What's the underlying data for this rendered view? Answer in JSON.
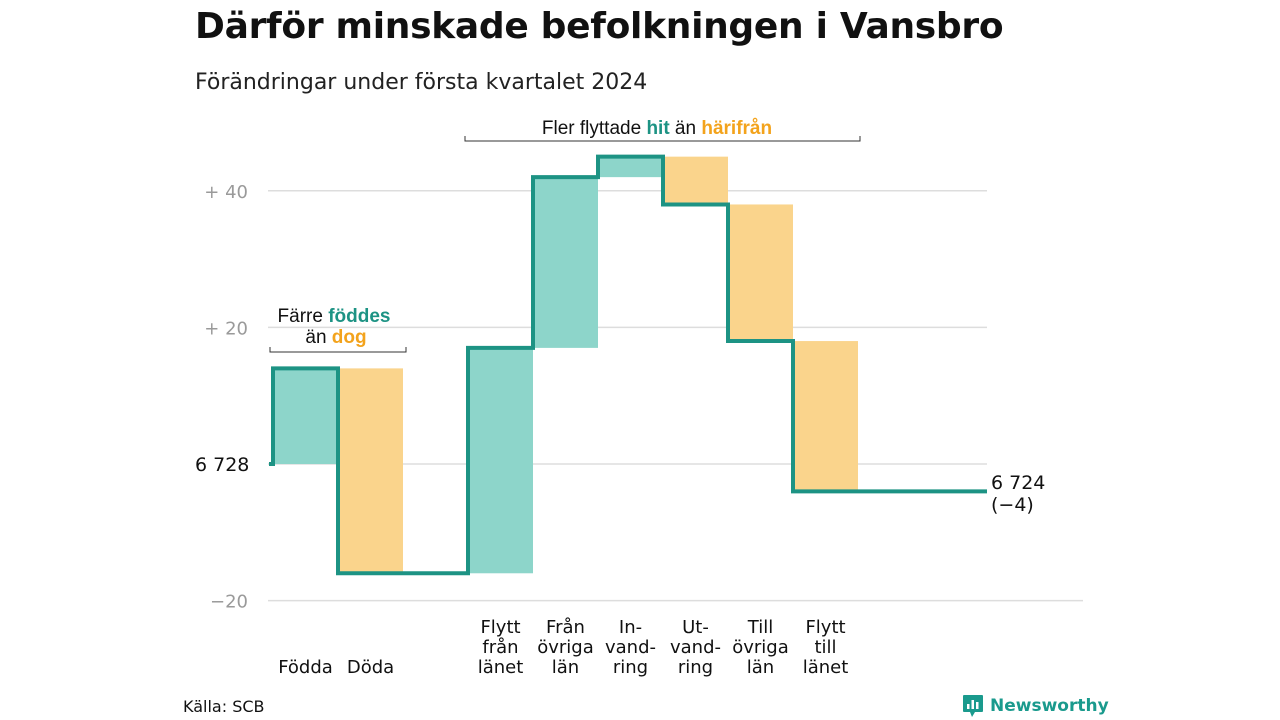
{
  "title": "Därför minskade befolkningen i Vansbro",
  "subtitle": "Förändringar under första kvartalet 2024",
  "source": "Källa: SCB",
  "brand": "Newsworthy",
  "colors": {
    "increase": "#8dd5ca",
    "decrease": "#fad48c",
    "line": "#1d9384",
    "accent_teal": "#1d9384",
    "accent_orange": "#f3a31c",
    "grid": "#dddddd",
    "axis_text": "#9a9a9a"
  },
  "annotations": {
    "births": {
      "line1_prefix": "Färre",
      "line1_highlight": "föddes",
      "line2_prefix": "än",
      "line2_highlight": "dog"
    },
    "migration": {
      "prefix": "Fler flyttade",
      "highlight1": "hit",
      "middle": "än",
      "highlight2": "härifrån"
    }
  },
  "chart_data": {
    "type": "waterfall",
    "start_label": "6  728",
    "end_label": "6 724",
    "end_change": "(−4)",
    "baseline": 0,
    "y_ticks": [
      {
        "value": 40,
        "label": "+  40"
      },
      {
        "value": 20,
        "label": "+  20"
      },
      {
        "value": -20,
        "label": "−20"
      }
    ],
    "ylim": [
      -20,
      45
    ],
    "steps": [
      {
        "lines": [
          "Födda"
        ],
        "change": 14
      },
      {
        "lines": [
          "Döda"
        ],
        "change": -30
      },
      {
        "lines": [
          ""
        ],
        "change": 0,
        "gap": true
      },
      {
        "lines": [
          "Flytt",
          "från",
          "länet"
        ],
        "change": 33
      },
      {
        "lines": [
          "Från",
          "övriga",
          "län"
        ],
        "change": 25
      },
      {
        "lines": [
          "In-",
          "vand-",
          "ring"
        ],
        "change": 3
      },
      {
        "lines": [
          "Ut-",
          "vand-",
          "ring"
        ],
        "change": -7
      },
      {
        "lines": [
          "Till",
          "övriga",
          "län"
        ],
        "change": -20
      },
      {
        "lines": [
          "Flytt",
          "till",
          "länet"
        ],
        "change": -22
      }
    ]
  }
}
